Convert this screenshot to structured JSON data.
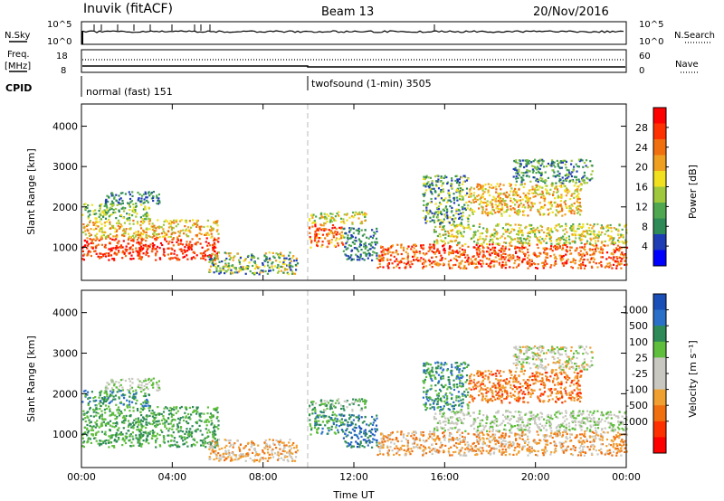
{
  "header": {
    "station": "Inuvik (fitACF)",
    "beam": "Beam 13",
    "date": "20/Nov/2016"
  },
  "top_panels": {
    "nsky_label": "N.Sky",
    "nsky_ticks": [
      "10^5",
      "10^0"
    ],
    "nsearch_label": "N.Search",
    "nsearch_ticks": [
      "10^5",
      "10^0"
    ],
    "freq_label": "Freq.",
    "freq_unit": "[MHz]",
    "freq_ticks": [
      "18",
      "8"
    ],
    "nave_label": "Nave",
    "nave_ticks": [
      "60",
      "0"
    ],
    "cpid_label": "CPID",
    "cpid_modes": [
      {
        "name": "normal (fast) 151",
        "start_hour": 0
      },
      {
        "name": "twofsound (1-min) 3505",
        "start_hour": 10
      }
    ]
  },
  "colors": {
    "power": [
      "#0000ff",
      "#1e3cb4",
      "#2e8b57",
      "#4fa84f",
      "#a0c83c",
      "#f0e020",
      "#f0a020",
      "#f07010",
      "#ff3000",
      "#ff0000"
    ],
    "velocity": [
      "#1a4fb8",
      "#2a70c8",
      "#2e8b57",
      "#5fbe3c",
      "#c8c8c0",
      "#c8c8c0",
      "#f0a030",
      "#f07010",
      "#ff3000",
      "#ff0000"
    ]
  },
  "chart_data": [
    {
      "type": "heatmap",
      "title": "Power",
      "ylabel": "Slant Range [km]",
      "xlabel": "Time UT",
      "x_ticks": [
        "00:00",
        "04:00",
        "08:00",
        "12:00",
        "16:00",
        "20:00",
        "00:00"
      ],
      "xlim_hours": [
        0,
        24
      ],
      "y_ticks": [
        "1000",
        "2000",
        "3000",
        "4000"
      ],
      "ylim_km": [
        180,
        4550
      ],
      "colorbar_label": "Power [dB]",
      "colorbar_ticks": [
        "4",
        "8",
        "12",
        "16",
        "20",
        "24",
        "28"
      ],
      "color_range": [
        0,
        32
      ]
    },
    {
      "type": "heatmap",
      "title": "Velocity",
      "ylabel": "Slant Range [km]",
      "xlabel": "Time UT",
      "x_ticks": [
        "00:00",
        "04:00",
        "08:00",
        "12:00",
        "16:00",
        "20:00",
        "00:00"
      ],
      "xlim_hours": [
        0,
        24
      ],
      "y_ticks": [
        "1000",
        "2000",
        "3000",
        "4000"
      ],
      "ylim_km": [
        180,
        4550
      ],
      "colorbar_label": "Velocity [m s⁻¹]",
      "colorbar_ticks": [
        "1000",
        "500",
        "100",
        "25",
        "-25",
        "-100",
        "-500",
        "-1000"
      ],
      "color_range": [
        -1000,
        1000
      ]
    }
  ],
  "axis_labels": {
    "slant_range": "Slant Range [km]",
    "time": "Time UT",
    "power_bar": "Power [dB]",
    "velocity_bar": "Velocity [m s⁻¹]"
  }
}
